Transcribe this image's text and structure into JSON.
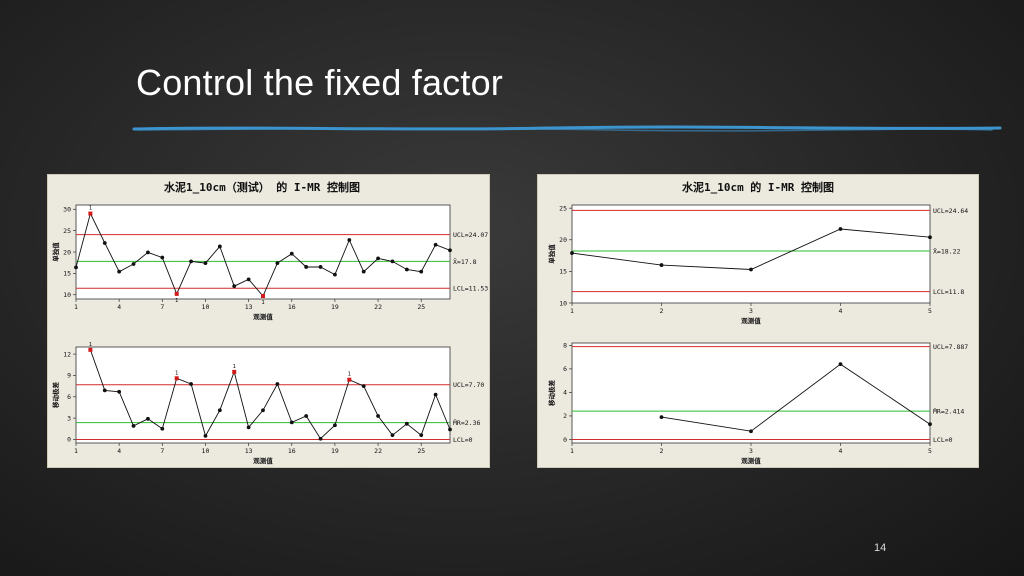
{
  "slide": {
    "title": "Control the fixed factor",
    "page_number": "14"
  },
  "colors": {
    "limit_line": "#d42a2a",
    "center_line": "#2ebd2e",
    "data_line": "#111111",
    "flag_point": "#d11919",
    "title_rule": "#3c95cf"
  },
  "chart_data": [
    {
      "type": "line",
      "title": "水泥1_10cm（测试） 的 I-MR 控制图",
      "panel": "left",
      "position": "top",
      "xlabel": "观测值",
      "ylabel": "单独值",
      "xlim": [
        1,
        27
      ],
      "ylim": [
        9,
        31
      ],
      "x_ticks": [
        1,
        4,
        7,
        10,
        13,
        16,
        19,
        22,
        25
      ],
      "y_ticks": [
        10,
        15,
        20,
        25,
        30
      ],
      "limits": {
        "ucl": 24.07,
        "center": 17.8,
        "lcl": 11.53
      },
      "limit_labels": {
        "ucl": "UCL=24.07",
        "center": "X̄=17.8",
        "lcl": "LCL=11.53"
      },
      "x": [
        1,
        2,
        3,
        4,
        5,
        6,
        7,
        8,
        9,
        10,
        11,
        12,
        13,
        14,
        15,
        16,
        17,
        18,
        19,
        20,
        21,
        22,
        23,
        24,
        25,
        26,
        27
      ],
      "values": [
        16.4,
        29.0,
        22.1,
        15.4,
        17.2,
        19.9,
        18.7,
        10.2,
        17.8,
        17.4,
        21.3,
        12.0,
        13.6,
        9.7,
        17.4,
        19.6,
        16.5,
        16.5,
        14.7,
        22.8,
        15.4,
        18.5,
        17.8,
        15.9,
        15.4,
        21.7,
        20.4
      ],
      "flagged": [
        2,
        8,
        14
      ],
      "flag_label": "1"
    },
    {
      "type": "line",
      "panel": "left",
      "position": "bottom",
      "xlabel": "观测值",
      "ylabel": "移动极差",
      "xlim": [
        1,
        27
      ],
      "ylim": [
        -0.5,
        13
      ],
      "x_ticks": [
        1,
        4,
        7,
        10,
        13,
        16,
        19,
        22,
        25
      ],
      "y_ticks": [
        0,
        3,
        6,
        9,
        12
      ],
      "limits": {
        "ucl": 7.7,
        "center": 2.36,
        "lcl": 0
      },
      "limit_labels": {
        "ucl": "UCL=7.70",
        "center": "M̄R=2.36",
        "lcl": "LCL=0"
      },
      "x": [
        2,
        3,
        4,
        5,
        6,
        7,
        8,
        9,
        10,
        11,
        12,
        13,
        14,
        15,
        16,
        17,
        18,
        19,
        20,
        21,
        22,
        23,
        24,
        25,
        26,
        27
      ],
      "values": [
        12.6,
        6.9,
        6.7,
        1.9,
        2.9,
        1.5,
        8.6,
        7.8,
        0.5,
        4.1,
        9.5,
        1.7,
        4.1,
        7.8,
        2.4,
        3.3,
        0.1,
        2.0,
        8.4,
        7.5,
        3.3,
        0.6,
        2.2,
        0.6,
        6.3,
        1.4
      ],
      "flagged": [
        2,
        8,
        12,
        20
      ],
      "flag_label": "1"
    },
    {
      "type": "line",
      "title": "水泥1_10cm 的 I-MR 控制图",
      "panel": "right",
      "position": "top",
      "xlabel": "观测值",
      "ylabel": "单独值",
      "xlim": [
        1,
        5
      ],
      "ylim": [
        10,
        25.5
      ],
      "x_ticks": [
        1,
        2,
        3,
        4,
        5
      ],
      "y_ticks": [
        10,
        15,
        20,
        25
      ],
      "limits": {
        "ucl": 24.64,
        "center": 18.22,
        "lcl": 11.8
      },
      "limit_labels": {
        "ucl": "UCL=24.64",
        "center": "X̄=18.22",
        "lcl": "LCL=11.8"
      },
      "x": [
        1,
        2,
        3,
        4,
        5
      ],
      "values": [
        17.9,
        16.0,
        15.3,
        21.7,
        20.4
      ],
      "flagged": [],
      "flag_label": ""
    },
    {
      "type": "line",
      "panel": "right",
      "position": "bottom",
      "xlabel": "观测值",
      "ylabel": "移动极差",
      "xlim": [
        1,
        5
      ],
      "ylim": [
        -0.3,
        8.2
      ],
      "x_ticks": [
        1,
        2,
        3,
        4,
        5
      ],
      "y_ticks": [
        0,
        2,
        4,
        6,
        8
      ],
      "limits": {
        "ucl": 7.887,
        "center": 2.414,
        "lcl": 0
      },
      "limit_labels": {
        "ucl": "UCL=7.887",
        "center": "M̄R=2.414",
        "lcl": "LCL=0"
      },
      "x": [
        2,
        3,
        4,
        5
      ],
      "values": [
        1.9,
        0.7,
        6.4,
        1.3
      ],
      "flagged": [],
      "flag_label": ""
    }
  ]
}
